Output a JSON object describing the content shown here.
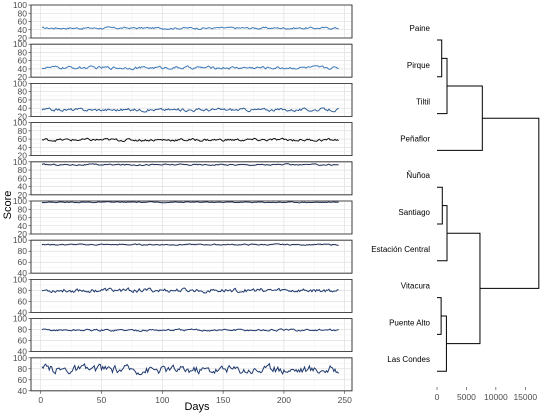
{
  "chart_data": [
    {
      "type": "line",
      "ylabel": "Score",
      "xlabel": "Days",
      "x_ticks": [
        0,
        50,
        100,
        150,
        200,
        250
      ],
      "xlim": [
        -8,
        256
      ],
      "n_days": 245,
      "panels": [
        {
          "color": "#3d7ab8",
          "mean": 44,
          "amp": 1.8,
          "ylim": [
            20,
            100
          ],
          "yticks": [
            20,
            40,
            60,
            80,
            100
          ]
        },
        {
          "color": "#3d7ab8",
          "mean": 43,
          "amp": 2.5,
          "ylim": [
            20,
            100
          ],
          "yticks": [
            20,
            40,
            60,
            80,
            100
          ]
        },
        {
          "color": "#2f5f98",
          "mean": 36,
          "amp": 2.6,
          "ylim": [
            20,
            100
          ],
          "yticks": [
            20,
            40,
            60,
            80,
            100
          ]
        },
        {
          "color": "#111111",
          "mean": 58,
          "amp": 2.4,
          "ylim": [
            20,
            100
          ],
          "yticks": [
            20,
            40,
            60,
            80,
            100
          ]
        },
        {
          "color": "#1f2f55",
          "mean": 93,
          "amp": 1.2,
          "ylim": [
            20,
            100
          ],
          "yticks": [
            20,
            40,
            60,
            80,
            100
          ]
        },
        {
          "color": "#1f2f55",
          "mean": 97,
          "amp": 0.8,
          "ylim": [
            20,
            100
          ],
          "yticks": [
            20,
            40,
            60,
            80,
            100
          ]
        },
        {
          "color": "#1f2f55",
          "mean": 92,
          "amp": 0.8,
          "ylim": [
            40,
            100
          ],
          "yticks": [
            40,
            60,
            80,
            100
          ]
        },
        {
          "color": "#1f3a6e",
          "mean": 80,
          "amp": 2.8,
          "ylim": [
            40,
            100
          ],
          "yticks": [
            40,
            60,
            80,
            100
          ]
        },
        {
          "color": "#1f3a6e",
          "mean": 79,
          "amp": 1.4,
          "ylim": [
            40,
            100
          ],
          "yticks": [
            40,
            60,
            80,
            100
          ]
        },
        {
          "color": "#1f3a6e",
          "mean": 79,
          "amp": 5.5,
          "ylim": [
            40,
            100
          ],
          "yticks": [
            40,
            60,
            80,
            100
          ]
        }
      ]
    },
    {
      "type": "dendrogram",
      "leaves": [
        "Paine",
        "Pirque",
        "Tiltil",
        "Peñaflor",
        "Ñuñoa",
        "Santiago",
        "Estación Central",
        "Vitacura",
        "Puente Alto",
        "Las Condes"
      ],
      "x_ticks": [
        0,
        5000,
        10000,
        15000
      ],
      "xlim": [
        0,
        17500
      ],
      "merges": [
        {
          "a": 0,
          "b": 1,
          "h": 800
        },
        {
          "a": 10,
          "b": 2,
          "h": 1700
        },
        {
          "a": 11,
          "b": 3,
          "h": 7700
        },
        {
          "a": 4,
          "b": 5,
          "h": 900
        },
        {
          "a": 13,
          "b": 6,
          "h": 1700
        },
        {
          "a": 7,
          "b": 8,
          "h": 700
        },
        {
          "a": 15,
          "b": 9,
          "h": 1600
        },
        {
          "a": 14,
          "b": 16,
          "h": 7300
        },
        {
          "a": 12,
          "b": 17,
          "h": 17300
        }
      ]
    }
  ]
}
